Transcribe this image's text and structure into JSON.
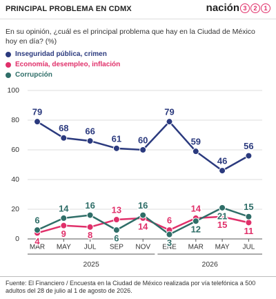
{
  "chart_data": {
    "type": "line",
    "title": "PRINCIPAL PROBLEMA EN CDMX",
    "brand": {
      "name": "nación",
      "digits": [
        "3",
        "2",
        "1"
      ]
    },
    "subtitle": "En su opinión, ¿cuál es el principal problema que hay en la Ciudad de México hoy en día? (%)",
    "categories": [
      "MAR",
      "MAY",
      "JUL",
      "SEP",
      "NOV",
      "ENE",
      "MAR",
      "MAY",
      "JUL"
    ],
    "x_groups": [
      "2025",
      "2026"
    ],
    "series": [
      {
        "name": "Inseguridad pública, crimen",
        "color": "#2b3a7e",
        "values": [
          79,
          68,
          66,
          61,
          60,
          79,
          59,
          46,
          56
        ]
      },
      {
        "name": "Economía, desempleo, inflación",
        "color": "#e0306a",
        "values": [
          4,
          9,
          8,
          13,
          14,
          6,
          14,
          15,
          11
        ]
      },
      {
        "name": "Corrupción",
        "color": "#2f6e68",
        "values": [
          6,
          14,
          16,
          6,
          16,
          3,
          12,
          21,
          15
        ]
      }
    ],
    "ylim": [
      0,
      100
    ],
    "yticks": [
      0,
      20,
      40,
      60,
      80,
      100
    ],
    "grid": true,
    "source": "Fuente: El Financiero /  Encuesta en la Ciudad de México realizada por vía telefónica a 500 adultos del 28 de julio al 1 de agosto de 2026."
  }
}
